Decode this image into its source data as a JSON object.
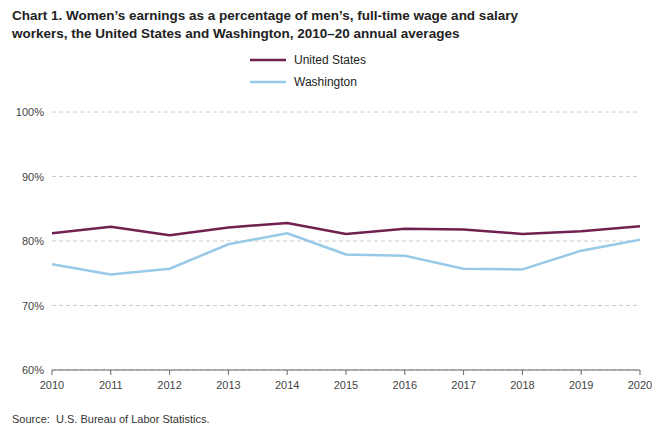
{
  "chart_data": {
    "type": "line",
    "title": "Chart 1. Women’s earnings as a percentage of men’s, full-time wage and salary\nworkers, the United States and Washington, 2010–20 annual averages",
    "source": "Source:  U.S. Bureau of Labor Statistics.",
    "x": [
      2010,
      2011,
      2012,
      2013,
      2014,
      2015,
      2016,
      2017,
      2018,
      2019,
      2020
    ],
    "series": [
      {
        "name": "United States",
        "color": "#722050",
        "values": [
          81.2,
          82.2,
          80.9,
          82.1,
          82.8,
          81.1,
          81.9,
          81.8,
          81.1,
          81.5,
          82.3
        ]
      },
      {
        "name": "Washington",
        "color": "#99C9E8",
        "values": [
          76.4,
          74.8,
          75.7,
          79.5,
          81.2,
          77.9,
          77.7,
          75.7,
          75.6,
          78.5,
          80.2
        ]
      }
    ],
    "xlim": [
      2010,
      2020
    ],
    "xticks": [
      2010,
      2011,
      2012,
      2013,
      2014,
      2015,
      2016,
      2017,
      2018,
      2019,
      2020
    ],
    "ylim": [
      60,
      100
    ],
    "yticks": [
      {
        "value": 60,
        "label": "60%"
      },
      {
        "value": 70,
        "label": "70%"
      },
      {
        "value": 80,
        "label": "80%"
      },
      {
        "value": 90,
        "label": "90%"
      },
      {
        "value": 100,
        "label": "100%"
      }
    ],
    "grid": true,
    "legend": "top"
  }
}
